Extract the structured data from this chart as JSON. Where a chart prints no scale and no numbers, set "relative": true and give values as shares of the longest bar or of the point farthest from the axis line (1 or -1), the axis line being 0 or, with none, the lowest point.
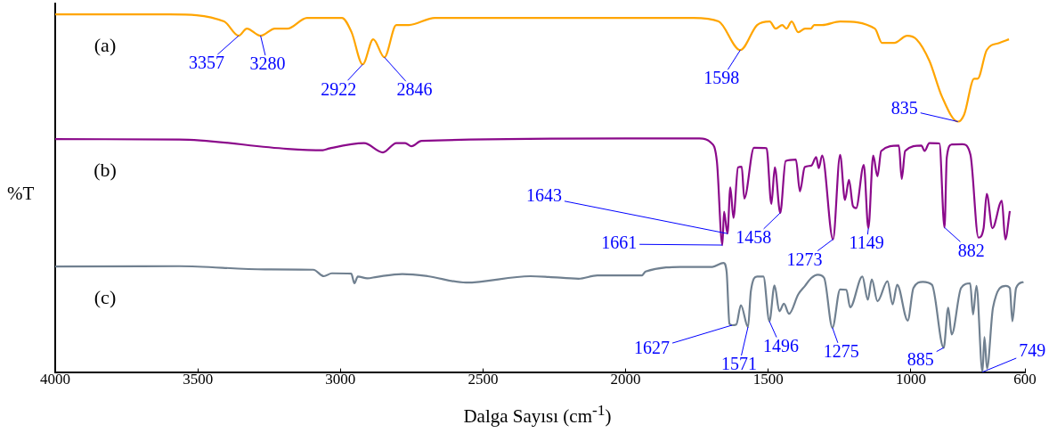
{
  "chart_data": {
    "type": "line",
    "relative": true,
    "xlabel": "Dalga Sayısı (cm$^{-1}$)",
    "ylabel": "%T",
    "xlim": [
      4000,
      600
    ],
    "xticks": [
      4000,
      3500,
      3000,
      2500,
      2000,
      1500,
      1000,
      600
    ],
    "grid": false,
    "legend": false,
    "marker": "none",
    "line_style": "solid",
    "series": [
      {
        "name": "(a)",
        "color": "#ffa500",
        "x": [
          4000,
          3600,
          3408,
          3357,
          3328,
          3280,
          3230,
          3186,
          3117,
          2995,
          2961,
          2922,
          2885,
          2846,
          2804,
          2760,
          2669,
          2000,
          1763,
          1674,
          1598,
          1539,
          1495,
          1474,
          1451,
          1436,
          1418,
          1395,
          1371,
          1351,
          1339,
          1311,
          1248,
          1126,
          1101,
          1076,
          1058,
          1013,
          980,
          935,
          891,
          835,
          813,
          778,
          766,
          734,
          690,
          656
        ],
        "values": [
          1.0,
          1.0,
          0.98,
          0.94,
          0.96,
          0.94,
          0.96,
          0.96,
          0.99,
          0.99,
          0.95,
          0.86,
          0.93,
          0.88,
          0.97,
          0.97,
          0.99,
          0.99,
          0.99,
          0.98,
          0.9,
          0.97,
          0.98,
          0.96,
          0.97,
          0.96,
          0.98,
          0.95,
          0.96,
          0.96,
          0.97,
          0.97,
          0.98,
          0.96,
          0.92,
          0.92,
          0.92,
          0.94,
          0.93,
          0.87,
          0.77,
          0.7,
          0.72,
          0.82,
          0.82,
          0.9,
          0.92,
          0.93
        ]
      },
      {
        "name": "(b)",
        "color": "#8b0a8b",
        "x": [
          4000,
          3565,
          3186,
          3062,
          3039,
          2917,
          2851,
          2804,
          2773,
          2751,
          2716,
          2000,
          1741,
          1702,
          1680,
          1661,
          1655,
          1643,
          1633,
          1622,
          1606,
          1593,
          1584,
          1550,
          1506,
          1489,
          1477,
          1458,
          1439,
          1403,
          1389,
          1372,
          1349,
          1332,
          1323,
          1311,
          1273,
          1248,
          1231,
          1217,
          1203,
          1192,
          1165,
          1149,
          1132,
          1117,
          1104,
          1042,
          1032,
          1020,
          963,
          952,
          935,
          900,
          882,
          874,
          857,
          819,
          791,
          763,
          745,
          734,
          714,
          681,
          669,
          653
        ],
        "values": [
          0.651,
          0.65,
          0.624,
          0.62,
          0.625,
          0.64,
          0.614,
          0.64,
          0.64,
          0.631,
          0.646,
          0.653,
          0.653,
          0.642,
          0.588,
          0.355,
          0.448,
          0.387,
          0.516,
          0.431,
          0.572,
          0.574,
          0.485,
          0.627,
          0.626,
          0.47,
          0.572,
          0.445,
          0.59,
          0.594,
          0.505,
          0.573,
          0.577,
          0.601,
          0.57,
          0.605,
          0.371,
          0.607,
          0.481,
          0.537,
          0.464,
          0.458,
          0.579,
          0.402,
          0.605,
          0.547,
          0.618,
          0.633,
          0.54,
          0.618,
          0.633,
          0.618,
          0.64,
          0.639,
          0.404,
          0.6,
          0.636,
          0.637,
          0.607,
          0.376,
          0.402,
          0.498,
          0.402,
          0.479,
          0.371,
          0.45
        ]
      },
      {
        "name": "(c)",
        "color": "#708090",
        "x": [
          4000,
          3565,
          3264,
          3095,
          3058,
          3030,
          2962,
          2951,
          2939,
          2906,
          2873,
          2783,
          2694,
          2560,
          2334,
          2269,
          2165,
          2099,
          1943,
          1930,
          1786,
          1696,
          1657,
          1646,
          1636,
          1627,
          1612,
          1596,
          1571,
          1561,
          1539,
          1517,
          1496,
          1478,
          1461,
          1445,
          1427,
          1395,
          1371,
          1349,
          1326,
          1304,
          1275,
          1248,
          1226,
          1213,
          1170,
          1151,
          1137,
          1117,
          1082,
          1064,
          1048,
          1011,
          991,
          958,
          926,
          885,
          869,
          857,
          824,
          792,
          782,
          770,
          749,
          742,
          733,
          712,
          667,
          653,
          644,
          631,
          605
        ],
        "values": [
          0.295,
          0.296,
          0.287,
          0.286,
          0.268,
          0.276,
          0.275,
          0.248,
          0.267,
          0.262,
          0.266,
          0.274,
          0.268,
          0.25,
          0.268,
          0.266,
          0.261,
          0.27,
          0.27,
          0.281,
          0.294,
          0.294,
          0.305,
          0.281,
          0.135,
          0.131,
          0.133,
          0.187,
          0.126,
          0.226,
          0.267,
          0.267,
          0.142,
          0.242,
          0.17,
          0.191,
          0.163,
          0.217,
          0.241,
          0.263,
          0.272,
          0.263,
          0.124,
          0.231,
          0.23,
          0.181,
          0.267,
          0.202,
          0.259,
          0.198,
          0.254,
          0.189,
          0.244,
          0.144,
          0.235,
          0.252,
          0.244,
          0.068,
          0.18,
          0.105,
          0.235,
          0.248,
          0.161,
          0.241,
          0.0,
          0.098,
          0.01,
          0.18,
          0.241,
          0.235,
          0.142,
          0.235,
          0.252
        ]
      }
    ],
    "annotations": [
      {
        "text": "3357",
        "x": 3357,
        "y": 0.94
      },
      {
        "text": "3280",
        "x": 3280,
        "y": 0.94
      },
      {
        "text": "2922",
        "x": 2922,
        "y": 0.86
      },
      {
        "text": "2846",
        "x": 2846,
        "y": 0.88
      },
      {
        "text": "1598",
        "x": 1598,
        "y": 0.9
      },
      {
        "text": "835",
        "x": 835,
        "y": 0.7
      },
      {
        "text": "1643",
        "x": 1643,
        "y": 0.387
      },
      {
        "text": "1661",
        "x": 1661,
        "y": 0.355
      },
      {
        "text": "1458",
        "x": 1458,
        "y": 0.445
      },
      {
        "text": "1273",
        "x": 1273,
        "y": 0.371
      },
      {
        "text": "1149",
        "x": 1149,
        "y": 0.402
      },
      {
        "text": "882",
        "x": 882,
        "y": 0.404
      },
      {
        "text": "1627",
        "x": 1627,
        "y": 0.131
      },
      {
        "text": "1571",
        "x": 1571,
        "y": 0.126
      },
      {
        "text": "1496",
        "x": 1496,
        "y": 0.142
      },
      {
        "text": "1275",
        "x": 1275,
        "y": 0.124
      },
      {
        "text": "885",
        "x": 885,
        "y": 0.068
      },
      {
        "text": "749",
        "x": 749,
        "y": 0.0
      }
    ]
  }
}
